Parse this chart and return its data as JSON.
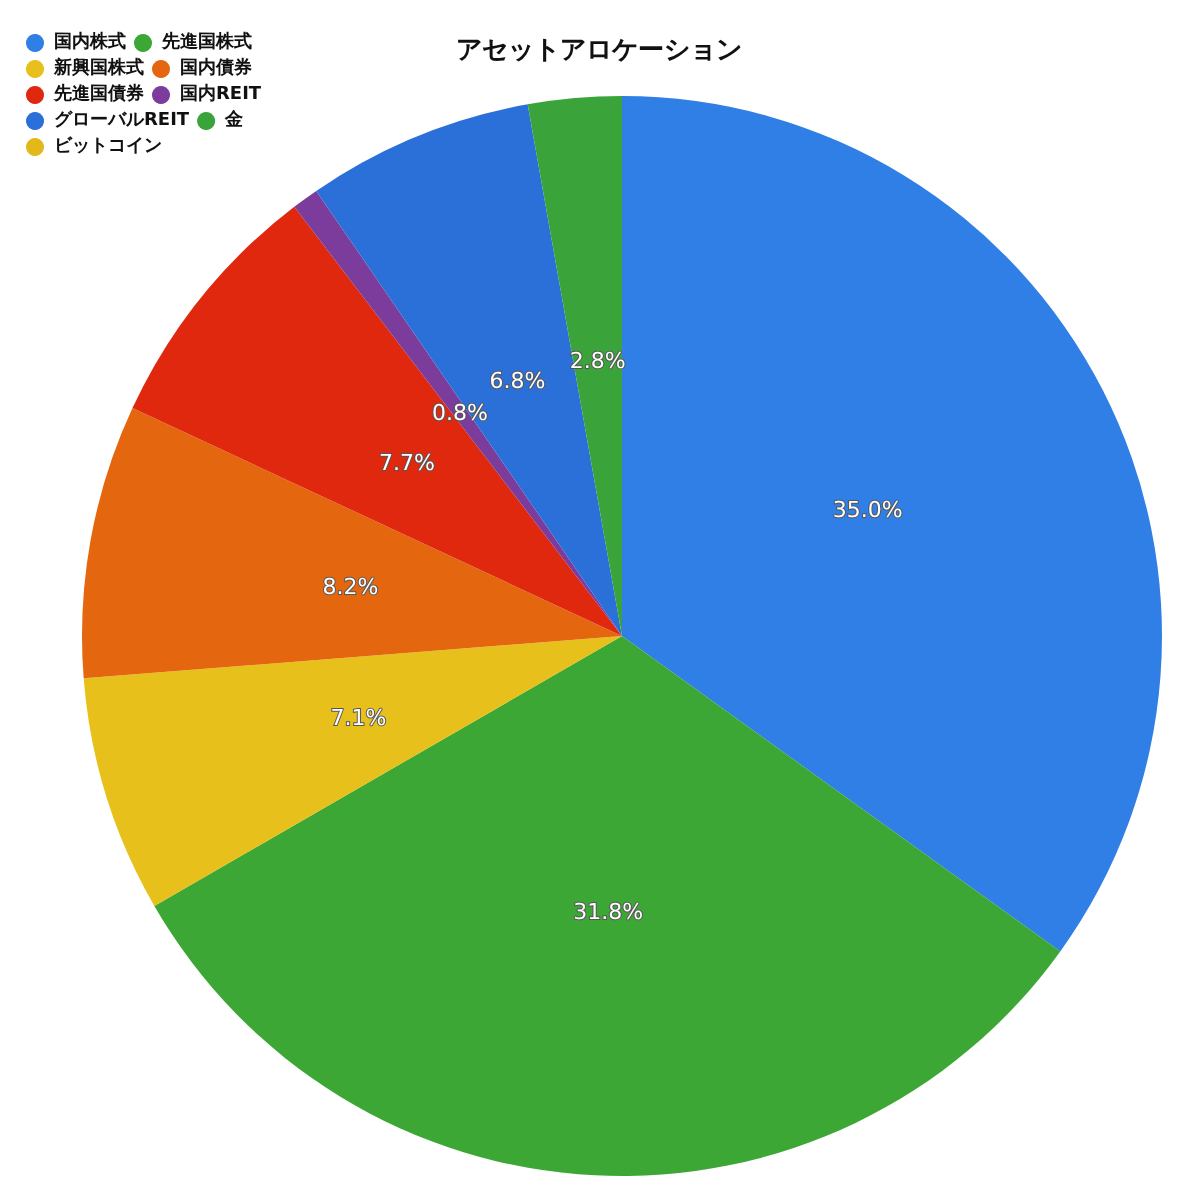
{
  "chart_data": {
    "type": "pie",
    "title": "アセットアロケーション",
    "categories": [
      "国内株式",
      "先進国株式",
      "新興国株式",
      "国内債券",
      "先進国債券",
      "国内REIT",
      "グローバルREIT",
      "金",
      "ビットコイン"
    ],
    "values": [
      35.0,
      31.8,
      7.1,
      8.2,
      7.7,
      0.8,
      6.8,
      2.8,
      0
    ],
    "colors": [
      "#2f7fe6",
      "#3ca735",
      "#e8c01c",
      "#e4670f",
      "#e0280f",
      "#7b3c9c",
      "#2a70d8",
      "#3aa33a",
      "#e3b81a"
    ],
    "value_labels": [
      "35.0%",
      "31.8%",
      "7.1%",
      "8.2%",
      "7.7%",
      "0.8%",
      "6.8%",
      "2.8%",
      null
    ],
    "legend": "top left"
  }
}
